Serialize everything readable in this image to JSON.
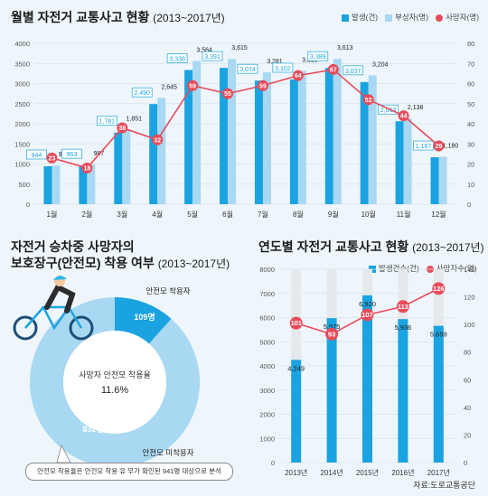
{
  "colors": {
    "accident": "#1aa3e0",
    "injured": "#a9d8f2",
    "death": "#e84b5a",
    "donutDark": "#1aa3e0",
    "donutLight": "#a9d8f2",
    "bg": "#eef6fb"
  },
  "top": {
    "title_main": "월별 자전거 교통사고 현황",
    "title_sub": "(2013~2017년)",
    "legend": {
      "accident": "발생(건)",
      "injured": "부상자(명)",
      "death": "사망자(명)"
    }
  },
  "pie": {
    "title_line1": "자전거 승차중 사망자의",
    "title_line2_main": "보호장구(안전모) 착용 여부",
    "title_line2_sub": "(2013~2017년)",
    "center_label": "사망자 안전모 착용율",
    "center_value": "11.6%",
    "label_wear": "안전모 착용자",
    "label_nowear": "안전모 미착용자",
    "value_wear": "109명",
    "value_nowear": "832명",
    "note": "안전모 착용율은 안전모 착용 유 무가 확인된 941명 대상으로 분석"
  },
  "yearly": {
    "title_main": "연도별 자전거 교통사고 현황",
    "title_sub": "(2013~2017년)",
    "legend": {
      "accident": "발생건수(건)",
      "death": "사망자수(명)"
    }
  },
  "source": "자료:도로교통공단",
  "chart_data": [
    {
      "type": "bar",
      "title": "월별 자전거 교통사고 현황 (2013~2017년)",
      "categories": [
        "1월",
        "2월",
        "3월",
        "4월",
        "5월",
        "6월",
        "7월",
        "8월",
        "9월",
        "10월",
        "11월",
        "12월"
      ],
      "series": [
        {
          "name": "발생(건)",
          "type": "bar",
          "values": [
            944,
            963,
            1781,
            2490,
            3338,
            3391,
            3074,
            3102,
            3389,
            3037,
            2063,
            1167
          ]
        },
        {
          "name": "부상자(명)",
          "type": "bar",
          "values": [
            961,
            987,
            1851,
            2645,
            3564,
            3615,
            3281,
            3318,
            3613,
            3204,
            2138,
            1180
          ]
        },
        {
          "name": "사망자(명)",
          "type": "line",
          "axis": "right",
          "values": [
            23,
            18,
            38,
            32,
            59,
            55,
            59,
            64,
            67,
            52,
            44,
            29
          ]
        }
      ],
      "ylim": [
        0,
        4000
      ],
      "yticks": [
        0,
        500,
        1000,
        1500,
        2000,
        2500,
        3000,
        3500,
        4000
      ],
      "y2lim": [
        0,
        80
      ],
      "y2ticks": [
        0,
        10,
        20,
        30,
        40,
        50,
        60,
        70,
        80
      ]
    },
    {
      "type": "pie",
      "title": "자전거 승차중 사망자의 보호장구(안전모) 착용 여부 (2013~2017년)",
      "labels": [
        "안전모 착용자",
        "안전모 미착용자"
      ],
      "values": [
        109,
        832
      ],
      "center": "11.6%"
    },
    {
      "type": "bar",
      "title": "연도별 자전거 교통사고 현황 (2013~2017년)",
      "categories": [
        "2013년",
        "2014년",
        "2015년",
        "2016년",
        "2017년"
      ],
      "series": [
        {
          "name": "발생건수(건)",
          "type": "bar",
          "values": [
            4249,
            5975,
            6920,
            5936,
            5659
          ]
        },
        {
          "name": "사망자수(명)",
          "type": "line",
          "axis": "right",
          "values": [
            101,
            93,
            107,
            113,
            126
          ]
        }
      ],
      "ylim": [
        0,
        8000
      ],
      "yticks": [
        0,
        1000,
        2000,
        3000,
        4000,
        5000,
        6000,
        7000,
        8000
      ],
      "y2lim": [
        0,
        140
      ],
      "y2ticks": [
        0,
        20,
        40,
        60,
        80,
        100,
        120,
        140
      ]
    }
  ]
}
